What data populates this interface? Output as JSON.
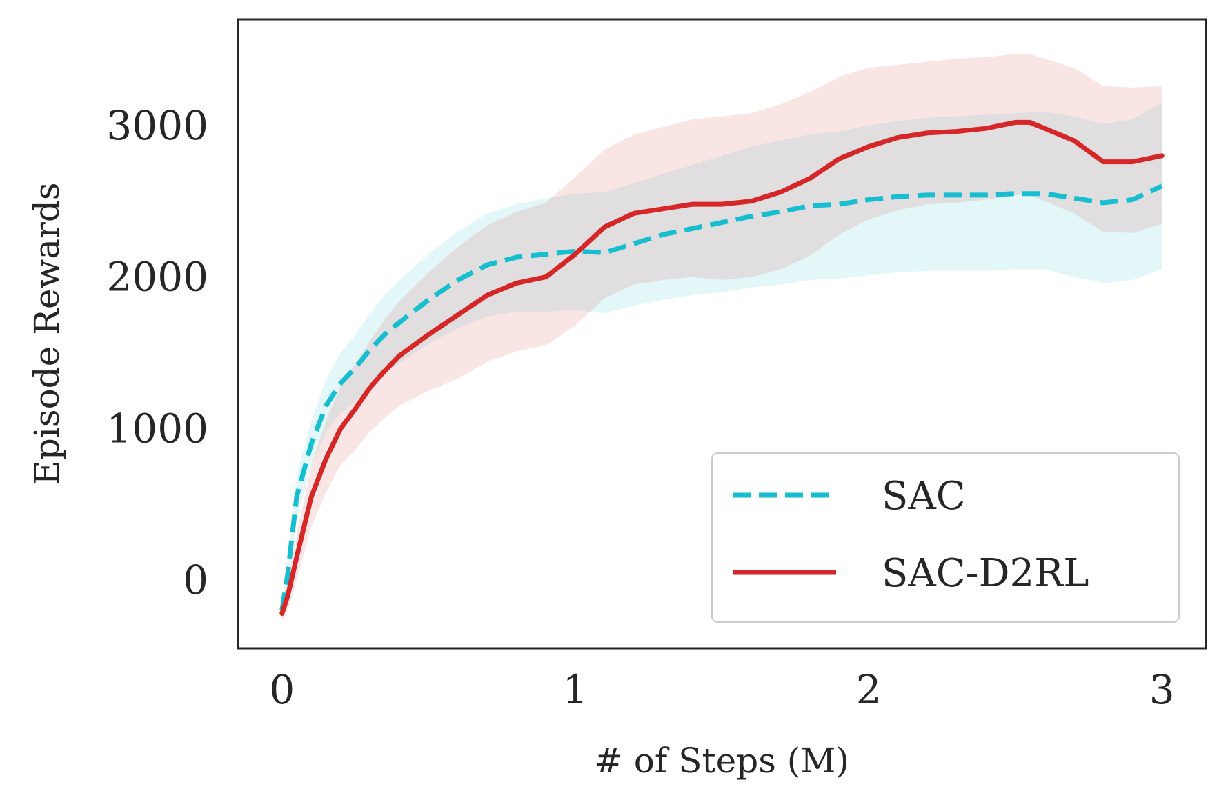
{
  "chart_data": {
    "type": "line",
    "title": "",
    "xlabel": "# of Steps (M)",
    "ylabel": "Episode Rewards",
    "xlim": [
      -0.15,
      3.15
    ],
    "ylim": [
      -450,
      3700
    ],
    "xticks": [
      0,
      1,
      2,
      3
    ],
    "xtick_labels": [
      "0",
      "1",
      "2",
      "3"
    ],
    "yticks": [
      0,
      1000,
      2000,
      3000
    ],
    "ytick_labels": [
      "0",
      "1000",
      "2000",
      "3000"
    ],
    "grid": false,
    "legend_position": "lower-right",
    "series": [
      {
        "name": "SAC",
        "color": "#17becf",
        "style": "dashed",
        "x": [
          0,
          0.02,
          0.05,
          0.1,
          0.15,
          0.2,
          0.25,
          0.3,
          0.35,
          0.4,
          0.5,
          0.6,
          0.7,
          0.8,
          0.9,
          1.0,
          1.1,
          1.2,
          1.3,
          1.4,
          1.5,
          1.6,
          1.7,
          1.8,
          1.9,
          2.0,
          2.1,
          2.2,
          2.3,
          2.4,
          2.5,
          2.6,
          2.7,
          2.8,
          2.9,
          3.0
        ],
        "y": [
          -200,
          50,
          550,
          900,
          1150,
          1300,
          1400,
          1520,
          1620,
          1700,
          1850,
          1980,
          2080,
          2130,
          2150,
          2170,
          2160,
          2220,
          2280,
          2320,
          2360,
          2400,
          2430,
          2470,
          2480,
          2510,
          2530,
          2540,
          2540,
          2540,
          2550,
          2550,
          2520,
          2490,
          2510,
          2600
        ],
        "upper": [
          -150,
          150,
          700,
          1050,
          1320,
          1500,
          1620,
          1760,
          1880,
          1980,
          2150,
          2300,
          2420,
          2480,
          2520,
          2550,
          2560,
          2620,
          2680,
          2740,
          2800,
          2860,
          2900,
          2940,
          2960,
          3000,
          3030,
          3050,
          3060,
          3070,
          3080,
          3090,
          3060,
          3010,
          3040,
          3150
        ],
        "lower": [
          -250,
          -50,
          400,
          750,
          980,
          1100,
          1180,
          1290,
          1370,
          1430,
          1560,
          1660,
          1740,
          1770,
          1770,
          1780,
          1760,
          1810,
          1850,
          1880,
          1900,
          1930,
          1950,
          1980,
          1990,
          2010,
          2030,
          2040,
          2040,
          2040,
          2050,
          2050,
          2000,
          1960,
          1980,
          2050
        ]
      },
      {
        "name": "SAC-D2RL",
        "color": "#d62728",
        "style": "solid",
        "x": [
          0,
          0.02,
          0.05,
          0.1,
          0.15,
          0.2,
          0.25,
          0.3,
          0.35,
          0.4,
          0.5,
          0.6,
          0.7,
          0.8,
          0.9,
          1.0,
          1.1,
          1.2,
          1.3,
          1.4,
          1.5,
          1.6,
          1.7,
          1.8,
          1.9,
          2.0,
          2.1,
          2.2,
          2.3,
          2.4,
          2.5,
          2.55,
          2.6,
          2.7,
          2.8,
          2.9,
          3.0
        ],
        "y": [
          -220,
          -100,
          150,
          550,
          800,
          1000,
          1130,
          1270,
          1380,
          1480,
          1620,
          1750,
          1880,
          1960,
          2000,
          2150,
          2330,
          2420,
          2450,
          2480,
          2480,
          2500,
          2560,
          2650,
          2780,
          2860,
          2920,
          2950,
          2960,
          2980,
          3020,
          3020,
          2980,
          2900,
          2760,
          2760,
          2800
        ],
        "upper": [
          -170,
          0,
          300,
          750,
          1050,
          1280,
          1430,
          1580,
          1720,
          1840,
          2030,
          2200,
          2340,
          2430,
          2490,
          2660,
          2840,
          2940,
          2990,
          3040,
          3060,
          3080,
          3140,
          3220,
          3320,
          3380,
          3400,
          3420,
          3440,
          3450,
          3470,
          3470,
          3440,
          3380,
          3260,
          3250,
          3260
        ],
        "lower": [
          -270,
          -200,
          0,
          350,
          580,
          760,
          860,
          980,
          1070,
          1150,
          1250,
          1330,
          1440,
          1510,
          1550,
          1680,
          1860,
          1950,
          1980,
          2000,
          1980,
          2000,
          2050,
          2140,
          2280,
          2380,
          2440,
          2480,
          2490,
          2510,
          2540,
          2540,
          2500,
          2420,
          2300,
          2290,
          2350
        ]
      }
    ]
  }
}
